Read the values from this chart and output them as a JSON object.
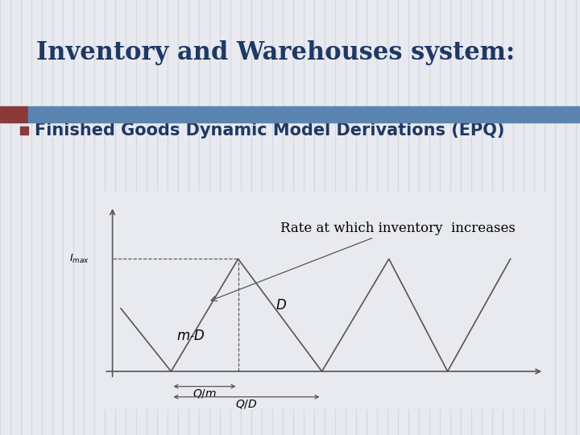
{
  "title": "Inventory and Warehouses system:",
  "subtitle": "Finished Goods Dynamic Model Derivations (EPQ)",
  "title_color": "#1F3864",
  "subtitle_color": "#1F3864",
  "bullet_color": "#8B3A3A",
  "header_bar_color": "#5B84B1",
  "header_bar_accent": "#8B3A3A",
  "background_color": "#E8EAF0",
  "bg_stripe_color": "#C8CDD8",
  "chart_annotation": "Rate at which inventory  increases",
  "label_imax": "$I_{max}$",
  "label_mD": "$m$-$D$",
  "label_D": "$D$",
  "label_Qm": "$Q/m$",
  "label_QD": "$Q/D$",
  "title_fontsize": 22,
  "subtitle_fontsize": 15,
  "annotation_fontsize": 12,
  "line_color": "#555555"
}
